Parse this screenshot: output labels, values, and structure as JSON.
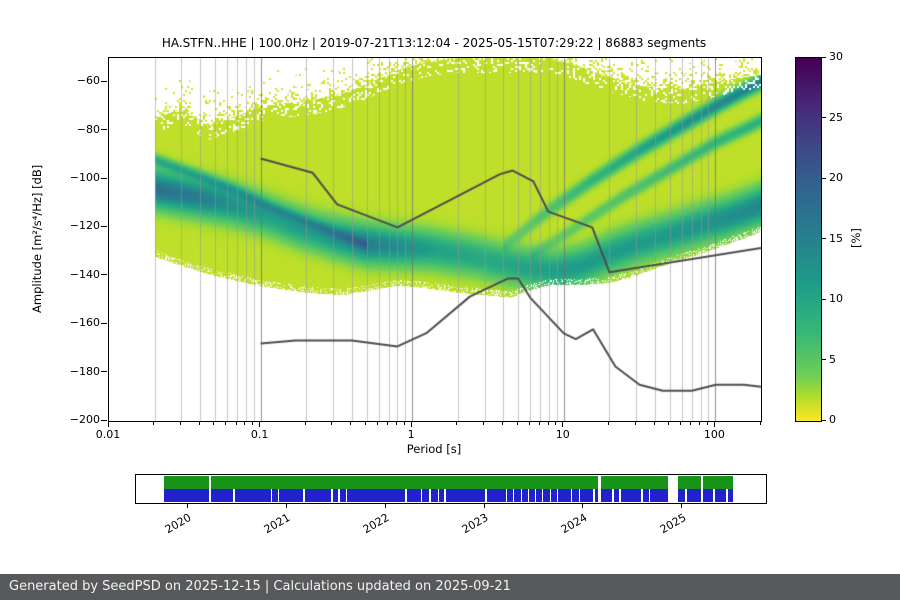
{
  "title": "HA.STFN..HHE | 100.0Hz | 2019-07-21T13:12:04 - 2025-05-15T07:29:22 | 86883 segments",
  "meta": {
    "station": "HA.STFN..HHE",
    "sampling_rate": "100.0Hz",
    "start": "2019-07-21T13:12:04",
    "end": "2025-05-15T07:29:22",
    "segments": 86883
  },
  "axes": {
    "xlabel": "Period [s]",
    "ylabel": "Amplitude [m²/s⁴/Hz] [dB]",
    "x_ticks": [
      {
        "v": 0.01,
        "label": "0.01"
      },
      {
        "v": 0.1,
        "label": "0.1"
      },
      {
        "v": 1,
        "label": "1"
      },
      {
        "v": 10,
        "label": "10"
      },
      {
        "v": 100,
        "label": "100"
      }
    ],
    "y_ticks": [
      {
        "v": -60,
        "label": "−60"
      },
      {
        "v": -80,
        "label": "−80"
      },
      {
        "v": -100,
        "label": "−100"
      },
      {
        "v": -120,
        "label": "−120"
      },
      {
        "v": -140,
        "label": "−140"
      },
      {
        "v": -160,
        "label": "−160"
      },
      {
        "v": -180,
        "label": "−180"
      },
      {
        "v": -200,
        "label": "−200"
      }
    ]
  },
  "colorbar": {
    "label": "[%]",
    "min": 0,
    "max": 30,
    "ticks": [
      0,
      5,
      10,
      15,
      20,
      25,
      30
    ],
    "colormap": "viridis_reversed",
    "low_color": "#fde725",
    "high_color": "#440154"
  },
  "footer": {
    "text": "Generated by SeedPSD on 2025-12-15 | Calculations updated on 2025-09-21",
    "bg": "#58595b"
  },
  "chart_data": [
    {
      "type": "heatmap",
      "title": "HA.STFN..HHE | 100.0Hz | 2019-07-21T13:12:04 - 2025-05-15T07:29:22 | 86883 segments",
      "xlabel": "Period [s]",
      "ylabel": "Amplitude [m²/s⁴/Hz] [dB]",
      "x_scale": "log",
      "xlim": [
        0.01,
        200
      ],
      "ylim": [
        -200,
        -50
      ],
      "grid": "vertical log major+minor",
      "legend": "none",
      "colorbar_units": "%",
      "ppsd": {
        "period_range": [
          0.02,
          200
        ],
        "background_percent": 1.6,
        "bottom_envelope": [
          [
            0.02,
            -132
          ],
          [
            0.03,
            -136
          ],
          [
            0.05,
            -140
          ],
          [
            0.08,
            -143
          ],
          [
            0.12,
            -145
          ],
          [
            0.2,
            -147
          ],
          [
            0.35,
            -148
          ],
          [
            0.55,
            -146
          ],
          [
            0.8,
            -144
          ],
          [
            1.2,
            -145
          ],
          [
            2,
            -147
          ],
          [
            3,
            -148
          ],
          [
            4.5,
            -149
          ],
          [
            6,
            -146
          ],
          [
            8,
            -144
          ],
          [
            12,
            -144
          ],
          [
            20,
            -143
          ],
          [
            30,
            -140
          ],
          [
            50,
            -135
          ],
          [
            80,
            -131
          ],
          [
            120,
            -127
          ],
          [
            200,
            -122
          ]
        ],
        "top_envelope": [
          [
            0.02,
            -75
          ],
          [
            0.03,
            -71
          ],
          [
            0.045,
            -78
          ],
          [
            0.07,
            -74
          ],
          [
            0.1,
            -70
          ],
          [
            0.18,
            -68
          ],
          [
            0.3,
            -66
          ],
          [
            0.5,
            -61
          ],
          [
            0.8,
            -55
          ],
          [
            1.2,
            -52
          ],
          [
            2,
            -50
          ],
          [
            8,
            -50
          ],
          [
            12,
            -53
          ],
          [
            20,
            -58
          ],
          [
            35,
            -62
          ],
          [
            60,
            -63
          ],
          [
            100,
            -60
          ],
          [
            150,
            -58
          ],
          [
            200,
            -57
          ]
        ],
        "mode_curve": {
          "points": [
            [
              0.02,
              -104
            ],
            [
              0.035,
              -107
            ],
            [
              0.06,
              -110
            ],
            [
              0.1,
              -114
            ],
            [
              0.18,
              -120
            ],
            [
              0.3,
              -124
            ],
            [
              0.5,
              -127
            ],
            [
              0.8,
              -128
            ],
            [
              1.3,
              -129
            ],
            [
              2.5,
              -132
            ],
            [
              4,
              -135
            ],
            [
              6,
              -137
            ],
            [
              9,
              -138
            ],
            [
              13,
              -136
            ],
            [
              20,
              -131
            ],
            [
              30,
              -127
            ],
            [
              50,
              -123
            ],
            [
              80,
              -119
            ],
            [
              120,
              -116
            ],
            [
              200,
              -111
            ]
          ],
          "peak_percent": [
            [
              0.02,
              16
            ],
            [
              0.04,
              14
            ],
            [
              0.07,
              11
            ],
            [
              0.12,
              9
            ],
            [
              0.25,
              10
            ],
            [
              0.5,
              14
            ],
            [
              0.8,
              12
            ],
            [
              1.5,
              9
            ],
            [
              3,
              8
            ],
            [
              6,
              9
            ],
            [
              10,
              10
            ],
            [
              20,
              10
            ],
            [
              40,
              10
            ],
            [
              80,
              11
            ],
            [
              140,
              12
            ],
            [
              200,
              13
            ]
          ],
          "width_db": 5
        },
        "streaks": [
          {
            "points": [
              [
                4,
                -128
              ],
              [
                8,
                -113
              ],
              [
                15,
                -101
              ],
              [
                30,
                -89
              ],
              [
                60,
                -78
              ],
              [
                100,
                -70
              ],
              [
                150,
                -64
              ],
              [
                200,
                -60
              ]
            ],
            "peak_percent": [
              [
                4,
                2
              ],
              [
                10,
                5
              ],
              [
                25,
                8
              ],
              [
                60,
                11
              ],
              [
                120,
                13
              ],
              [
                200,
                14
              ]
            ],
            "width_db": 2
          },
          {
            "points": [
              [
                6,
                -132
              ],
              [
                12,
                -120
              ],
              [
                25,
                -107
              ],
              [
                50,
                -96
              ],
              [
                100,
                -85
              ],
              [
                160,
                -79
              ],
              [
                200,
                -76
              ]
            ],
            "peak_percent": [
              [
                6,
                2
              ],
              [
                25,
                4
              ],
              [
                80,
                6
              ],
              [
                200,
                7
              ]
            ],
            "width_db": 1.8
          },
          {
            "points": [
              [
                0.02,
                -92
              ],
              [
                0.04,
                -99
              ],
              [
                0.07,
                -105
              ],
              [
                0.12,
                -112
              ],
              [
                0.25,
                -120
              ],
              [
                0.5,
                -127
              ]
            ],
            "peak_percent": [
              [
                0.02,
                7
              ],
              [
                0.1,
                6
              ],
              [
                0.5,
                5
              ]
            ],
            "width_db": 1.6
          }
        ]
      },
      "noise_models": {
        "color": "#4d4d4d",
        "nhnm": [
          [
            0.1,
            -91.5
          ],
          [
            0.22,
            -97.4
          ],
          [
            0.32,
            -110.5
          ],
          [
            0.8,
            -120
          ],
          [
            3.8,
            -98
          ],
          [
            4.6,
            -96.5
          ],
          [
            6.3,
            -101
          ],
          [
            7.9,
            -113.5
          ],
          [
            15.4,
            -120
          ],
          [
            20,
            -138.5
          ],
          [
            200,
            -128.5
          ]
        ],
        "nlnm": [
          [
            0.1,
            -168
          ],
          [
            0.17,
            -166.7
          ],
          [
            0.4,
            -166.7
          ],
          [
            0.8,
            -169.2
          ],
          [
            1.24,
            -163.7
          ],
          [
            2.4,
            -148.6
          ],
          [
            4.3,
            -141.1
          ],
          [
            5,
            -141.1
          ],
          [
            6,
            -149
          ],
          [
            10,
            -163.8
          ],
          [
            12,
            -166.2
          ],
          [
            15.6,
            -162.1
          ],
          [
            21.9,
            -177.5
          ],
          [
            31.6,
            -185
          ],
          [
            45,
            -187.5
          ],
          [
            70,
            -187.5
          ],
          [
            101,
            -185
          ],
          [
            154,
            -185
          ],
          [
            200,
            -185.9
          ]
        ]
      }
    },
    {
      "type": "timeline",
      "description": "data availability bar",
      "years": [
        {
          "label": "2020",
          "pct": 8.3
        },
        {
          "label": "2021",
          "pct": 24.0
        },
        {
          "label": "2022",
          "pct": 39.7
        },
        {
          "label": "2023",
          "pct": 55.4
        },
        {
          "label": "2024",
          "pct": 71.1
        },
        {
          "label": "2025",
          "pct": 86.8
        }
      ],
      "coverage_pct": {
        "start": 4.4,
        "end": 94.8
      },
      "rows": [
        {
          "name": "data-spans",
          "color": "#179417",
          "gaps": [
            [
              11.6,
              0.3
            ],
            [
              73.3,
              0.5
            ],
            [
              84.4,
              1.6
            ],
            [
              89.7,
              0.3
            ]
          ]
        },
        {
          "name": "psd-coverage",
          "color": "#2222cc",
          "gaps": [
            [
              11.6,
              0.25
            ],
            [
              15.4,
              0.25
            ],
            [
              21.4,
              0.25
            ],
            [
              22.5,
              0.25
            ],
            [
              26.5,
              0.25
            ],
            [
              31.0,
              0.25
            ],
            [
              32.1,
              0.25
            ],
            [
              33.3,
              0.25
            ],
            [
              42.7,
              0.3
            ],
            [
              45.2,
              0.25
            ],
            [
              46.5,
              0.25
            ],
            [
              47.9,
              0.25
            ],
            [
              48.9,
              0.25
            ],
            [
              55.4,
              0.3
            ],
            [
              58.7,
              0.25
            ],
            [
              59.8,
              0.25
            ],
            [
              61.1,
              0.25
            ],
            [
              62.2,
              0.25
            ],
            [
              63.3,
              0.25
            ],
            [
              64.4,
              0.25
            ],
            [
              65.7,
              0.25
            ],
            [
              66.8,
              0.25
            ],
            [
              69.0,
              0.25
            ],
            [
              70.3,
              0.25
            ],
            [
              72.5,
              0.3
            ],
            [
              73.3,
              0.5
            ],
            [
              75.6,
              0.25
            ],
            [
              76.7,
              0.25
            ],
            [
              80.2,
              0.3
            ],
            [
              81.4,
              0.25
            ],
            [
              84.4,
              1.6
            ],
            [
              87.1,
              0.3
            ],
            [
              89.7,
              0.3
            ],
            [
              91.6,
              0.3
            ],
            [
              93.7,
              0.3
            ]
          ]
        }
      ]
    }
  ]
}
